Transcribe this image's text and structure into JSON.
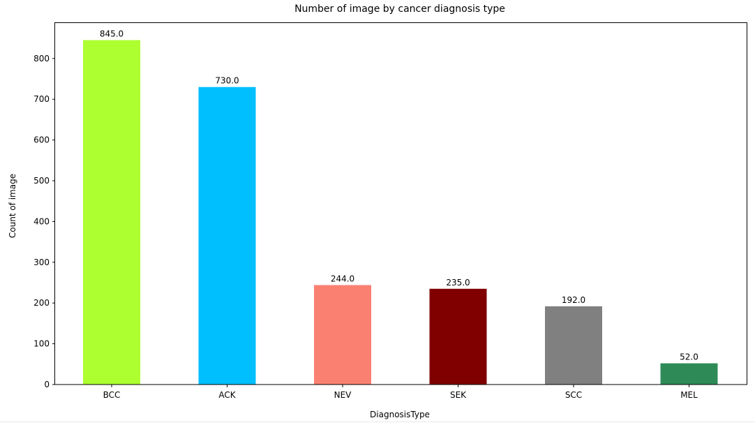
{
  "chart_data": {
    "type": "bar",
    "title": "Number of image by cancer diagnosis type",
    "xlabel": "DiagnosisType",
    "ylabel": "Count of image",
    "categories": [
      "BCC",
      "ACK",
      "NEV",
      "SEK",
      "SCC",
      "MEL"
    ],
    "values": [
      845,
      730,
      244,
      235,
      192,
      52
    ],
    "data_labels": [
      "845.0",
      "730.0",
      "244.0",
      "235.0",
      "192.0",
      "52.0"
    ],
    "colors": [
      "#adff2f",
      "#00bfff",
      "#fa8072",
      "#800000",
      "#808080",
      "#2e8b57"
    ],
    "ylim": [
      0,
      887
    ],
    "yticks": [
      0,
      100,
      200,
      300,
      400,
      500,
      600,
      700,
      800
    ],
    "grid": false,
    "legend": "none"
  }
}
